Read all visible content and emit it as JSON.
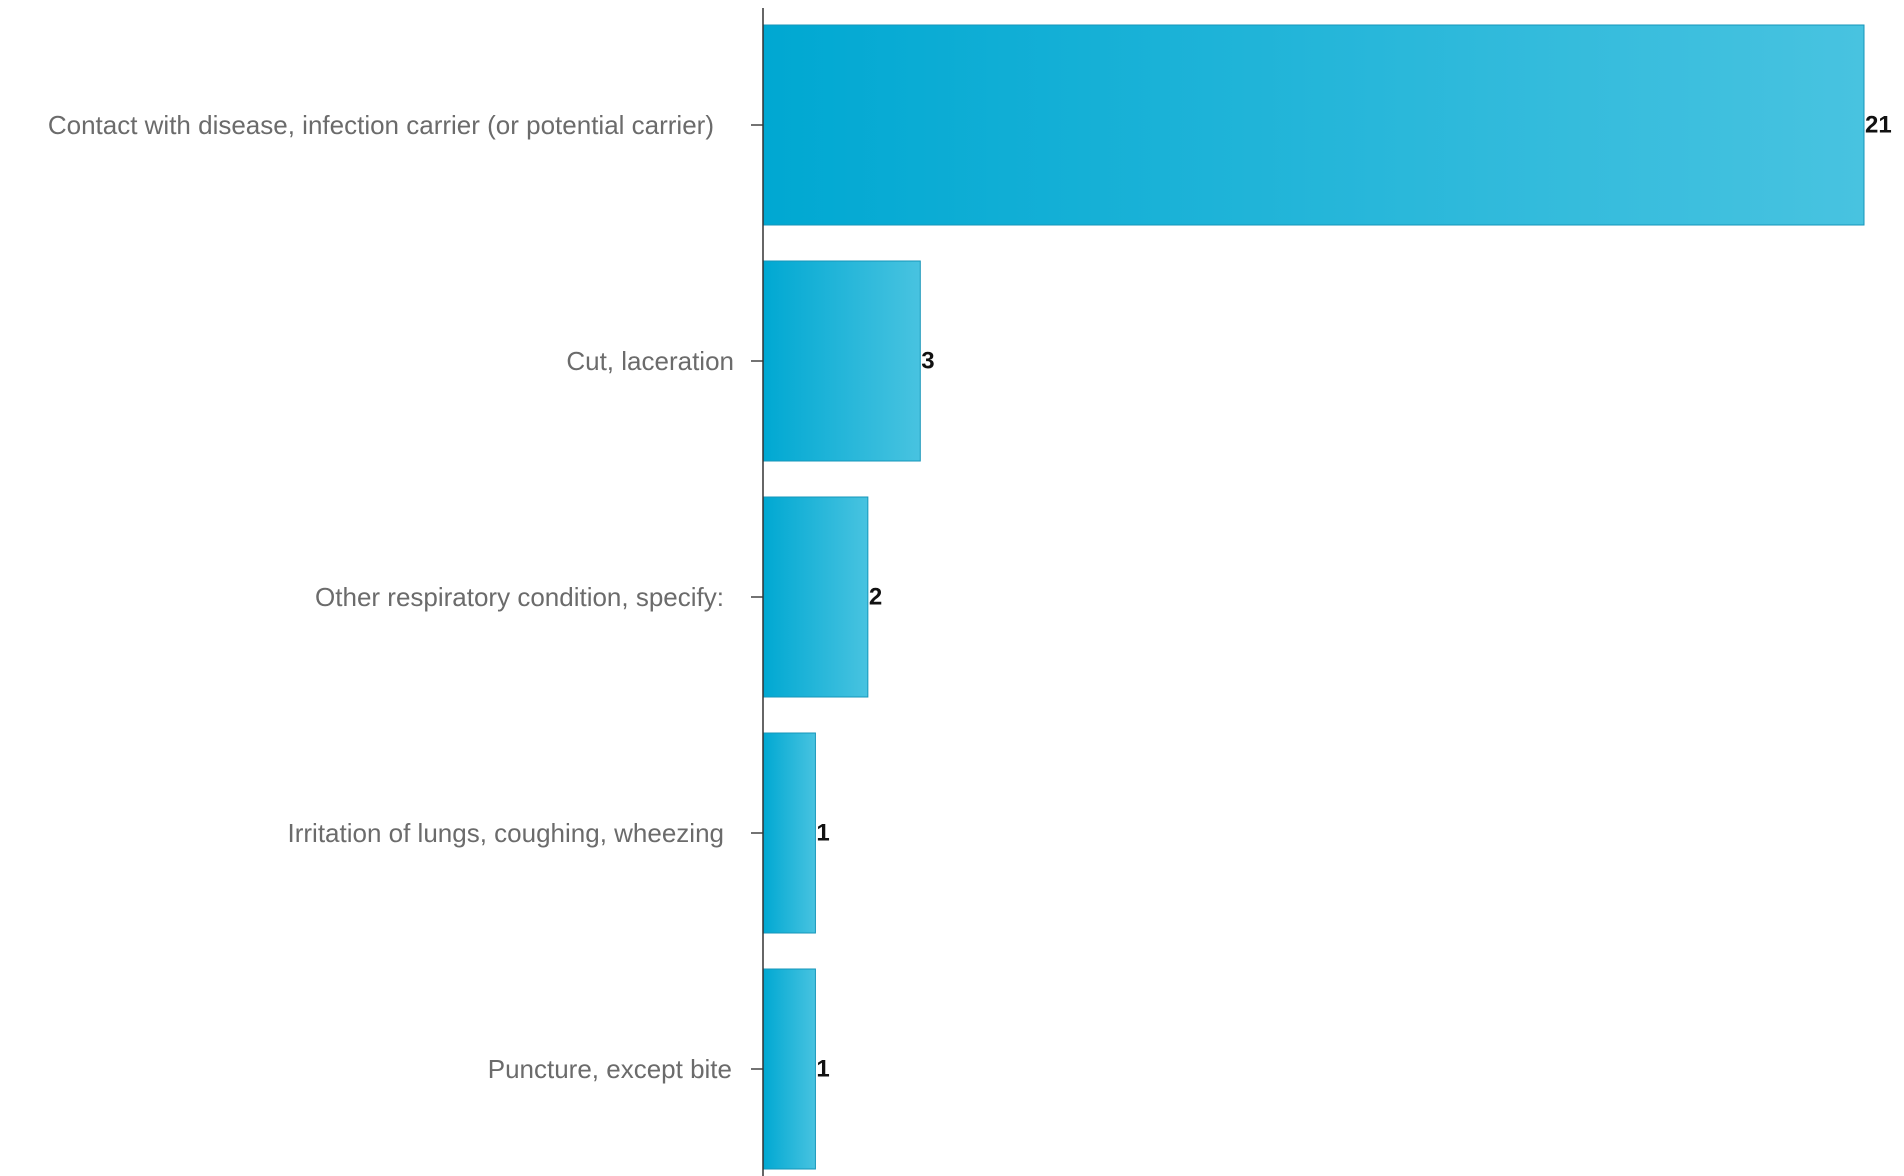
{
  "chart_data": {
    "type": "bar",
    "orientation": "horizontal",
    "categories": [
      "Contact with disease, infection carrier (or potential carrier)",
      "Cut, laceration",
      "Other respiratory condition, specify:",
      "Irritation of lungs, coughing, wheezing",
      "Puncture, except bite"
    ],
    "values": [
      21,
      3,
      2,
      1,
      1
    ],
    "xlim": [
      0,
      21
    ],
    "grid": false,
    "legend": "none",
    "bar_color_start": "#00a8d2",
    "bar_color_end": "#48c3e0",
    "value_labels": [
      "21",
      "3",
      "2",
      "1",
      "1"
    ]
  }
}
